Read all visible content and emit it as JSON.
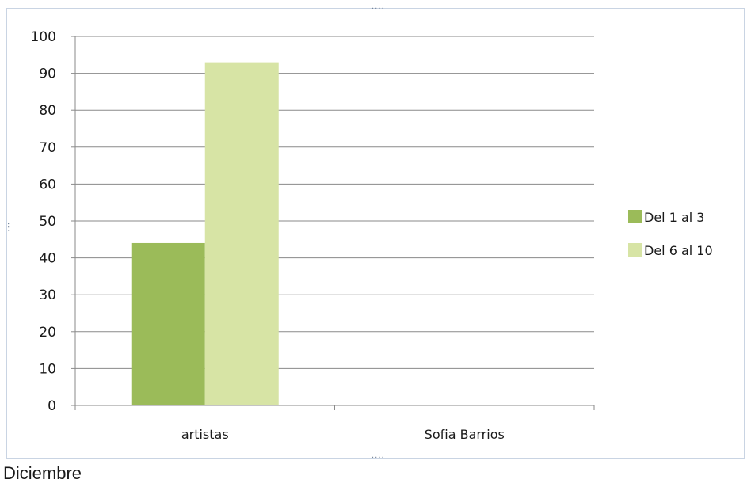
{
  "caption": "Diciembre",
  "chart_data": {
    "type": "bar",
    "categories": [
      "artistas",
      "Sofia Barrios"
    ],
    "series": [
      {
        "name": "Del 1 al 3",
        "values": [
          44,
          null
        ],
        "color": "#9bbb59"
      },
      {
        "name": "Del 6 al 10",
        "values": [
          93,
          null
        ],
        "color": "#d7e4a5"
      }
    ],
    "ylim": [
      0,
      100
    ],
    "yticks": [
      0,
      10,
      20,
      30,
      40,
      50,
      60,
      70,
      80,
      90,
      100
    ],
    "grid": true,
    "legend": "right",
    "title": "",
    "xlabel": "",
    "ylabel": ""
  }
}
